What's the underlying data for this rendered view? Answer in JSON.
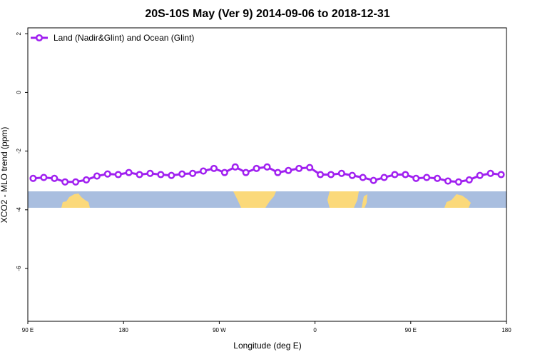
{
  "chart_data": {
    "type": "line",
    "title": "20S-10S May (Ver 9)   2014-09-06 to 2018-12-31",
    "x_label": "Longitude (deg E)",
    "y_label": "XCO2 - MLO trend (ppm)",
    "x": [
      95,
      105,
      115,
      125,
      135,
      145,
      155,
      165,
      175,
      185,
      195,
      205,
      215,
      225,
      235,
      245,
      255,
      265,
      275,
      285,
      295,
      305,
      315,
      325,
      335,
      345,
      355,
      365,
      375,
      385,
      395,
      405,
      415,
      425,
      435,
      445,
      455,
      465,
      475,
      485,
      495,
      505,
      515,
      525,
      535
    ],
    "series": [
      {
        "name": "Land (Nadir&Glint) and Ocean (Glint)",
        "color": "#a020f0",
        "values": [
          -2.93,
          -2.9,
          -2.93,
          -3.05,
          -3.05,
          -2.98,
          -2.85,
          -2.78,
          -2.8,
          -2.73,
          -2.8,
          -2.76,
          -2.8,
          -2.83,
          -2.78,
          -2.76,
          -2.68,
          -2.59,
          -2.73,
          -2.54,
          -2.73,
          -2.59,
          -2.54,
          -2.73,
          -2.66,
          -2.59,
          -2.56,
          -2.8,
          -2.8,
          -2.76,
          -2.83,
          -2.9,
          -3.0,
          -2.9,
          -2.8,
          -2.8,
          -2.93,
          -2.9,
          -2.93,
          -3.02,
          -3.05,
          -2.98,
          -2.83,
          -2.76,
          -2.8
        ]
      }
    ],
    "xlim": [
      90,
      540
    ],
    "xticks": [
      {
        "value": 90,
        "label": "90 E"
      },
      180,
      {
        "value": 270,
        "label": "90 W"
      },
      {
        "value": 360,
        "label": "0"
      },
      {
        "value": 450,
        "label": "90 E"
      },
      {
        "value": 540,
        "label": "180"
      }
    ],
    "ylim": [
      -7.8,
      2.2
    ],
    "yticks": [
      2,
      0,
      -2,
      -4,
      -6
    ],
    "legend": "top-left"
  }
}
